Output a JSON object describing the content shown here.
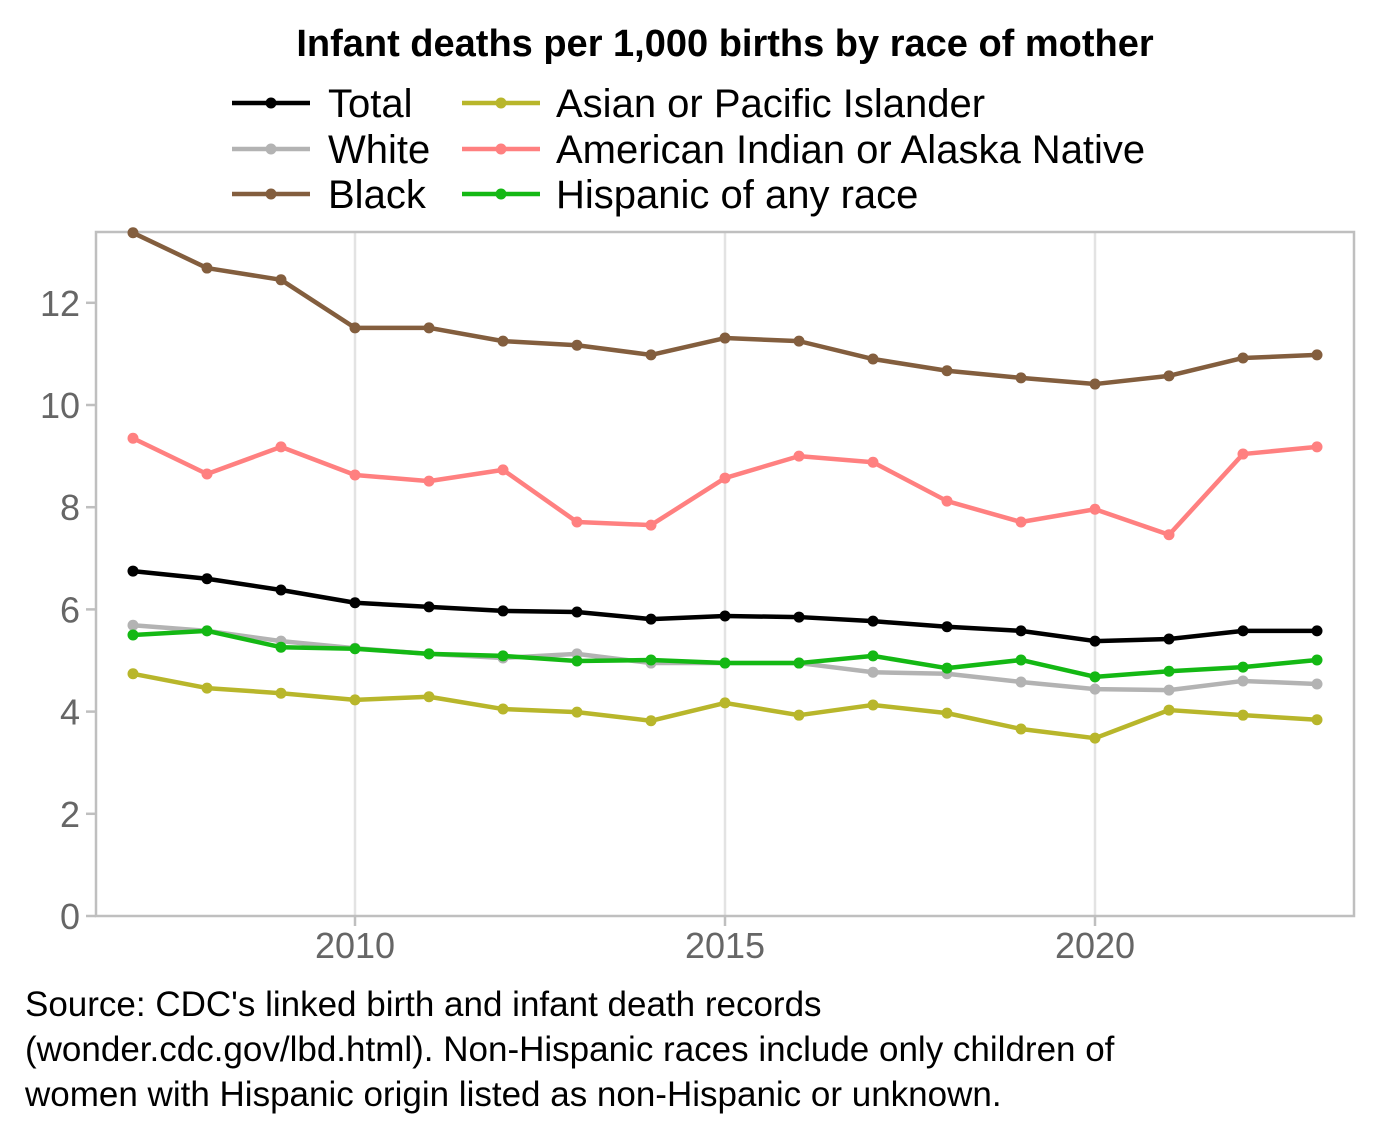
{
  "chart_data": {
    "type": "line",
    "title": "Infant deaths per 1,000 births by race of mother",
    "xlabel": "",
    "ylabel": "",
    "x": [
      2007,
      2008,
      2009,
      2010,
      2011,
      2012,
      2013,
      2014,
      2015,
      2016,
      2017,
      2018,
      2019,
      2020,
      2021,
      2022,
      2023
    ],
    "xlim": [
      2006.4,
      2023.4
    ],
    "ylim": [
      0,
      13.4
    ],
    "xticks": [
      2010,
      2015,
      2020
    ],
    "xtick_labels": [
      "2010",
      "2015",
      "2020"
    ],
    "yticks": [
      0,
      2,
      4,
      6,
      8,
      10,
      12
    ],
    "ytick_labels": [
      "0",
      "2",
      "4",
      "6",
      "8",
      "10",
      "12"
    ],
    "grid": "vertical major",
    "legend_position": "top",
    "series": [
      {
        "name": "Total",
        "color": "#000000",
        "values": [
          6.75,
          6.6,
          6.38,
          6.13,
          6.05,
          5.97,
          5.95,
          5.81,
          5.87,
          5.85,
          5.77,
          5.66,
          5.58,
          5.38,
          5.42,
          5.58,
          5.58
        ]
      },
      {
        "name": "White",
        "color": "#b3b3b3",
        "values": [
          5.69,
          5.58,
          5.38,
          5.24,
          5.13,
          5.05,
          5.13,
          4.95,
          4.95,
          4.95,
          4.77,
          4.74,
          4.58,
          4.44,
          4.42,
          4.6,
          4.54
        ]
      },
      {
        "name": "Black",
        "color": "#835e3e",
        "values": [
          13.37,
          12.68,
          12.45,
          11.51,
          11.51,
          11.25,
          11.17,
          10.98,
          11.31,
          11.25,
          10.9,
          10.67,
          10.53,
          10.41,
          10.57,
          10.92,
          10.98
        ]
      },
      {
        "name": "Asian or Pacific Islander",
        "color": "#b8b62b",
        "values": [
          4.74,
          4.46,
          4.36,
          4.23,
          4.29,
          4.05,
          3.99,
          3.82,
          4.17,
          3.93,
          4.13,
          3.97,
          3.66,
          3.48,
          4.03,
          3.93,
          3.84
        ]
      },
      {
        "name": "American Indian or Alaska Native",
        "color": "#ff8080",
        "values": [
          9.35,
          8.65,
          9.18,
          8.63,
          8.51,
          8.73,
          7.71,
          7.65,
          8.57,
          9.0,
          8.88,
          8.12,
          7.71,
          7.96,
          7.46,
          9.04,
          9.18
        ]
      },
      {
        "name": "Hispanic of any race",
        "color": "#14b814",
        "values": [
          5.5,
          5.58,
          5.26,
          5.23,
          5.13,
          5.09,
          4.99,
          5.01,
          4.95,
          4.95,
          5.09,
          4.85,
          5.01,
          4.68,
          4.79,
          4.87,
          5.01
        ]
      }
    ],
    "legend_order": [
      0,
      1,
      2,
      3,
      4,
      5
    ]
  },
  "caption": {
    "lines": [
      "Source: CDC's linked birth and infant death records",
      "(wonder.cdc.gov/lbd.html). Non-Hispanic races include only children of",
      "women with Hispanic origin listed as non-Hispanic or unknown."
    ]
  },
  "colors": {
    "axis": "#bfbfbf",
    "grid": "#e3e3e3",
    "tick_text": "#666666"
  }
}
